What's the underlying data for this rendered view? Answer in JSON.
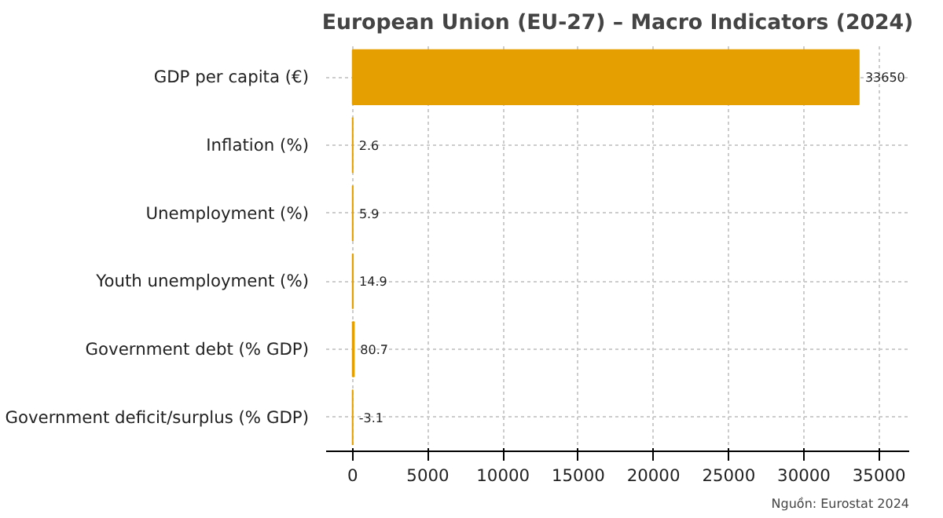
{
  "chart_data": {
    "type": "bar",
    "orientation": "horizontal",
    "title": "European Union (EU-27) – Macro Indicators (2024)",
    "categories": [
      "GDP per capita (€)",
      "Inflation (%)",
      "Unemployment (%)",
      "Youth unemployment (%)",
      "Government debt (% GDP)",
      "Government deficit/surplus (% GDP)"
    ],
    "values": [
      33650,
      2.6,
      5.9,
      14.9,
      80.7,
      -3.1
    ],
    "color": "#e69f00",
    "xlim": [
      -1765,
      37000
    ],
    "xticks": [
      0,
      5000,
      10000,
      15000,
      20000,
      25000,
      30000,
      35000
    ],
    "grid": true,
    "data_labels": true,
    "annotations": [
      "Nguồn: Eurostat 2024"
    ]
  }
}
